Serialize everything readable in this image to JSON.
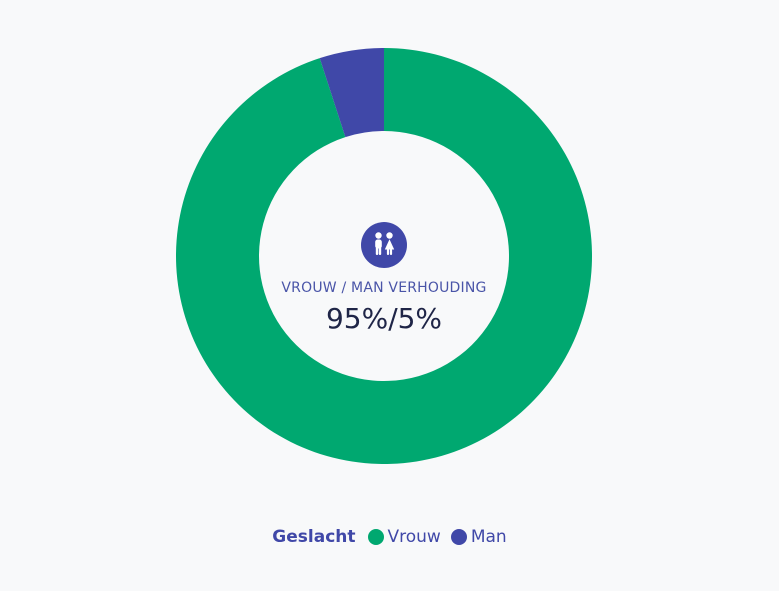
{
  "chart_data": {
    "type": "pie",
    "donut": true,
    "categories": [
      "Vrouw",
      "Man"
    ],
    "values": [
      95,
      5
    ],
    "colors": [
      "#00a870",
      "#4048a8"
    ],
    "center_label": "VROUW / MAN VERHOUDING",
    "center_value": "95%/5%",
    "legend_title": "Geslacht",
    "legend_position": "bottom"
  },
  "icon": {
    "name": "restroom-icon",
    "color": "#4048a8"
  }
}
